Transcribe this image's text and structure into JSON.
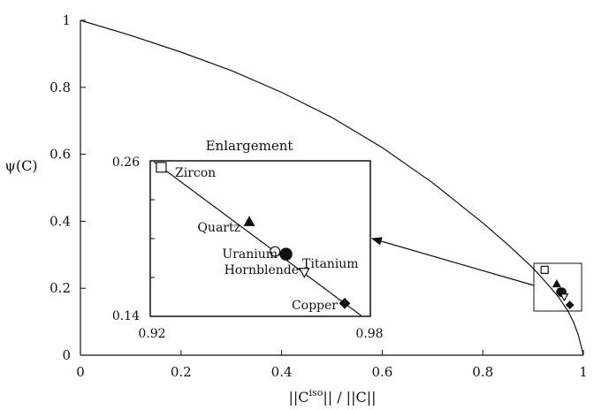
{
  "chart_data": {
    "type": "line",
    "title": "",
    "xlabel": "||C^iso|| / ||C||",
    "xlabel_parts": {
      "pre": "||C",
      "sup": "iso",
      "post": "|| / ||C||"
    },
    "ylabel": "ψ(C)",
    "xlim": [
      0,
      1
    ],
    "ylim": [
      0,
      1
    ],
    "x_ticks": [
      0,
      0.2,
      0.4,
      0.6,
      0.8,
      1
    ],
    "x_tick_labels": [
      "0",
      "0.2",
      "0.4",
      "0.6",
      "0.8",
      "1"
    ],
    "y_ticks": [
      0,
      0.2,
      0.4,
      0.6,
      0.8,
      1
    ],
    "y_tick_labels": [
      "0",
      "0.2",
      "0.4",
      "0.6",
      "0.8",
      "1"
    ],
    "grid": false,
    "series": [
      {
        "x": [
          0,
          0.1,
          0.2,
          0.3,
          0.4,
          0.5,
          0.6,
          0.7,
          0.8,
          0.85,
          0.9,
          0.93,
          0.95,
          0.97,
          0.98,
          0.99,
          0.995,
          1.0
        ],
        "y": [
          1,
          0.955,
          0.905,
          0.85,
          0.785,
          0.71,
          0.62,
          0.515,
          0.395,
          0.33,
          0.26,
          0.21,
          0.175,
          0.13,
          0.1,
          0.06,
          0.03,
          0
        ]
      }
    ],
    "points": [
      {
        "name": "Zircon",
        "x": 0.923,
        "y": 0.255,
        "marker": "open-square"
      },
      {
        "name": "Quartz",
        "x": 0.947,
        "y": 0.213,
        "marker": "filled-triangle"
      },
      {
        "name": "Uranium",
        "x": 0.954,
        "y": 0.19,
        "marker": "open-circle"
      },
      {
        "name": "Titanium",
        "x": 0.957,
        "y": 0.188,
        "marker": "filled-circle"
      },
      {
        "name": "Hornblende",
        "x": 0.962,
        "y": 0.174,
        "marker": "open-triangle-down"
      },
      {
        "name": "Copper",
        "x": 0.973,
        "y": 0.15,
        "marker": "filled-diamond"
      }
    ],
    "inset": {
      "title": "Enlargement",
      "xlim": [
        0.92,
        0.98
      ],
      "ylim": [
        0.14,
        0.26
      ],
      "x_tick_labels": [
        "0.92",
        "0.98"
      ],
      "y_tick_labels": [
        "0.26",
        "0.14"
      ]
    }
  }
}
